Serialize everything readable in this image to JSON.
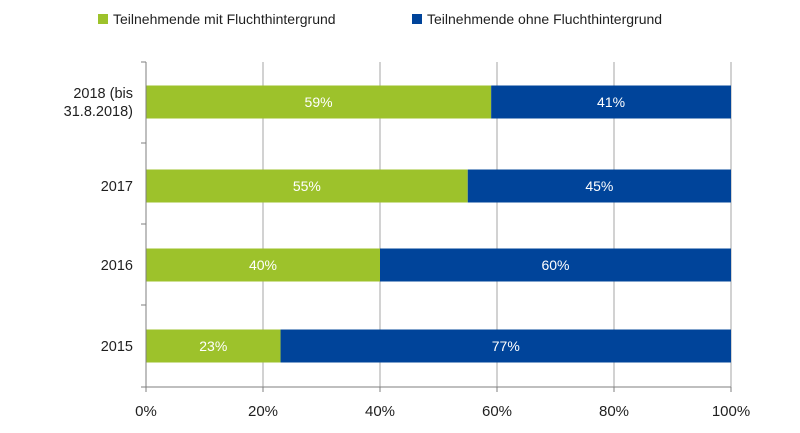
{
  "chart_data": {
    "type": "bar",
    "orientation": "horizontal",
    "stacked": true,
    "categories": [
      [
        "2018 (bis",
        "31.8.2018)"
      ],
      [
        "2017"
      ],
      [
        "2016"
      ],
      [
        "2015"
      ]
    ],
    "series": [
      {
        "name": "Teilnehmende mit Fluchthintergrund",
        "color": "#9dc22b",
        "values": [
          59,
          55,
          40,
          23
        ],
        "labels": [
          "59%",
          "55%",
          "40%",
          "23%"
        ]
      },
      {
        "name": "Teilnehmende ohne Fluchthintergrund",
        "color": "#00449a",
        "values": [
          41,
          45,
          60,
          77
        ],
        "labels": [
          "41%",
          "45%",
          "60%",
          "77%"
        ]
      }
    ],
    "xlim": [
      0,
      100
    ],
    "xticks": [
      0,
      20,
      40,
      60,
      80,
      100
    ],
    "xtick_labels": [
      "0%",
      "20%",
      "40%",
      "60%",
      "80%",
      "100%"
    ],
    "grid": true,
    "legend_position": "top",
    "title": "",
    "xlabel": "",
    "ylabel": ""
  }
}
